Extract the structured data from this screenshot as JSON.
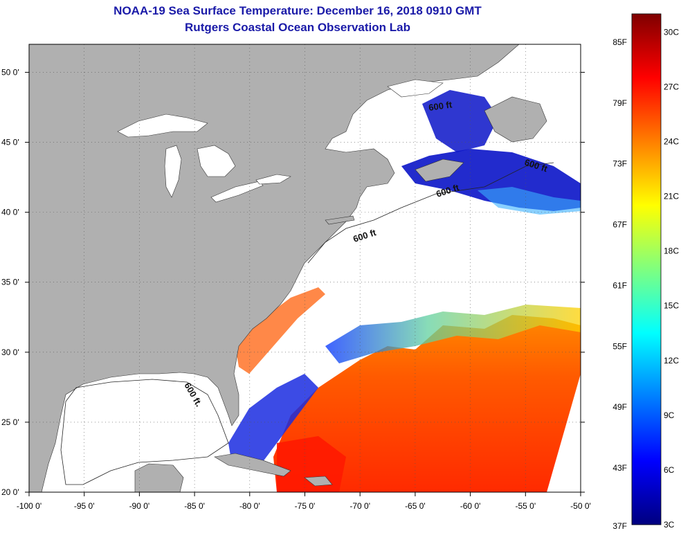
{
  "header": {
    "title": "NOAA-19 Sea Surface Temperature:  December 16, 2018 0910 GMT",
    "subtitle": "Rutgers Coastal Ocean Observation Lab"
  },
  "map": {
    "lon_range": [
      -100,
      -50
    ],
    "lat_range": [
      20,
      52
    ],
    "lon_ticks": [
      {
        "value": -100,
        "label": "-100 0'"
      },
      {
        "value": -95,
        "label": "-95 0'"
      },
      {
        "value": -90,
        "label": "-90 0'"
      },
      {
        "value": -85,
        "label": "-85 0'"
      },
      {
        "value": -80,
        "label": "-80 0'"
      },
      {
        "value": -75,
        "label": "-75 0'"
      },
      {
        "value": -70,
        "label": "-70 0'"
      },
      {
        "value": -65,
        "label": "-65 0'"
      },
      {
        "value": -60,
        "label": "-60 0'"
      },
      {
        "value": -55,
        "label": "-55 0'"
      },
      {
        "value": -50,
        "label": "-50 0'"
      }
    ],
    "lat_ticks": [
      {
        "value": 50,
        "label": "50 0'"
      },
      {
        "value": 45,
        "label": "45 0'"
      },
      {
        "value": 40,
        "label": "40 0'"
      },
      {
        "value": 35,
        "label": "35 0'"
      },
      {
        "value": 30,
        "label": "30 0'"
      },
      {
        "value": 25,
        "label": "25 0'"
      },
      {
        "value": 20,
        "label": "20 0'"
      }
    ],
    "depth_label": "600 ft",
    "gulf_depth_label": "600 ft.",
    "colors": {
      "land": "#b0b0b0",
      "water": "#ffffff",
      "grid": "#555555"
    }
  },
  "colorbar": {
    "fahrenheit": [
      {
        "value": 85,
        "label": "85F"
      },
      {
        "value": 79,
        "label": "79F"
      },
      {
        "value": 73,
        "label": "73F"
      },
      {
        "value": 67,
        "label": "67F"
      },
      {
        "value": 61,
        "label": "61F"
      },
      {
        "value": 55,
        "label": "55F"
      },
      {
        "value": 49,
        "label": "49F"
      },
      {
        "value": 43,
        "label": "43F"
      },
      {
        "value": 37,
        "label": "37F"
      }
    ],
    "celsius": [
      {
        "value": 30,
        "label": "30C"
      },
      {
        "value": 27,
        "label": "27C"
      },
      {
        "value": 24,
        "label": "24C"
      },
      {
        "value": 21,
        "label": "21C"
      },
      {
        "value": 18,
        "label": "18C"
      },
      {
        "value": 15,
        "label": "15C"
      },
      {
        "value": 12,
        "label": "12C"
      },
      {
        "value": 9,
        "label": "9C"
      },
      {
        "value": 6,
        "label": "6C"
      },
      {
        "value": 3,
        "label": "3C"
      }
    ],
    "c_range": [
      3,
      31
    ],
    "gradient": [
      "#00007f",
      "#0000ff",
      "#007fff",
      "#00ffff",
      "#7fff7f",
      "#ffff00",
      "#ff7f00",
      "#ff0000",
      "#7f0000"
    ]
  }
}
